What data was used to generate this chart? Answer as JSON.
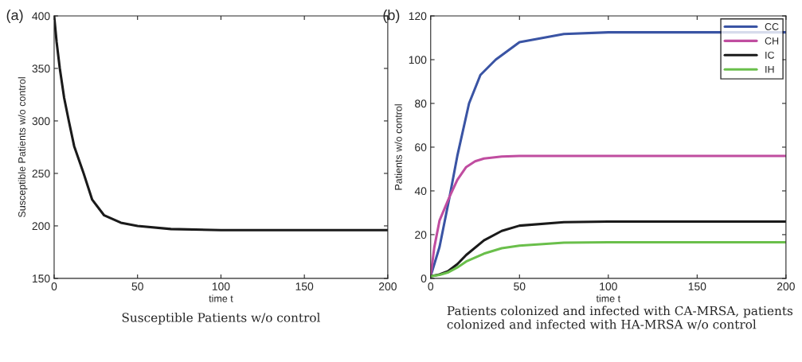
{
  "chart_data": [
    {
      "type": "line",
      "xlabel": "time t",
      "ylabel": "Susceptible Patients w/o control",
      "xlim": [
        0,
        200
      ],
      "ylim": [
        150,
        400
      ],
      "xticks": [
        0,
        50,
        100,
        150,
        200
      ],
      "yticks": [
        150,
        200,
        250,
        300,
        350,
        400
      ],
      "grid": false,
      "legend": false,
      "annotations": [
        "(a)",
        "Susceptible Patients w/o control"
      ],
      "series": [
        {
          "color": "#1a1a1a",
          "x": [
            0,
            1.5,
            3.4,
            6,
            8.8,
            12,
            17.7,
            22.8,
            30,
            40,
            50,
            70,
            100,
            150,
            200
          ],
          "values": [
            400,
            375,
            350,
            322,
            300,
            276,
            250,
            225,
            210,
            203,
            200,
            197,
            196,
            196,
            196
          ]
        }
      ]
    },
    {
      "type": "line",
      "xlabel": "time t",
      "ylabel": "Patients w/o control",
      "xlim": [
        0,
        200
      ],
      "ylim": [
        0,
        120
      ],
      "xticks": [
        0,
        50,
        100,
        150,
        200
      ],
      "yticks": [
        0,
        20,
        40,
        60,
        80,
        100,
        120
      ],
      "grid": false,
      "legend": "top right",
      "annotations": [
        "(b)",
        "Patients colonized and infected with CA-MRSA, patients colonized and infected with HA-MRSA w/o control"
      ],
      "series": [
        {
          "name": "CC",
          "color": "#3a54a4",
          "x": [
            0,
            5,
            10.7,
            15,
            21.6,
            28,
            36.6,
            50,
            75,
            100,
            150,
            200
          ],
          "values": [
            1,
            14.4,
            37.5,
            56,
            80,
            93,
            100,
            108,
            111.7,
            112.5,
            112.5,
            112.5
          ]
        },
        {
          "name": "CH",
          "color": "#c04da0",
          "x": [
            0,
            2,
            5,
            10.7,
            15,
            20,
            25,
            30,
            40,
            50,
            100,
            200
          ],
          "values": [
            1,
            14,
            26.5,
            37.5,
            45,
            50.9,
            53.5,
            54.8,
            55.7,
            56,
            56,
            56
          ]
        },
        {
          "name": "IC",
          "color": "#1a1a1a",
          "x": [
            0,
            5,
            10,
            15,
            20,
            30,
            40,
            50,
            75,
            100,
            200
          ],
          "values": [
            1,
            1.8,
            3.4,
            6.5,
            10.7,
            17.4,
            21.7,
            24.1,
            25.7,
            26,
            26
          ]
        },
        {
          "name": "IH",
          "color": "#6abf4b",
          "x": [
            0,
            5,
            10,
            15,
            20,
            30,
            40,
            50,
            75,
            100,
            200
          ],
          "values": [
            1,
            1.6,
            2.8,
            5,
            7.7,
            11.3,
            13.8,
            15,
            16.3,
            16.5,
            16.5
          ]
        }
      ]
    }
  ]
}
